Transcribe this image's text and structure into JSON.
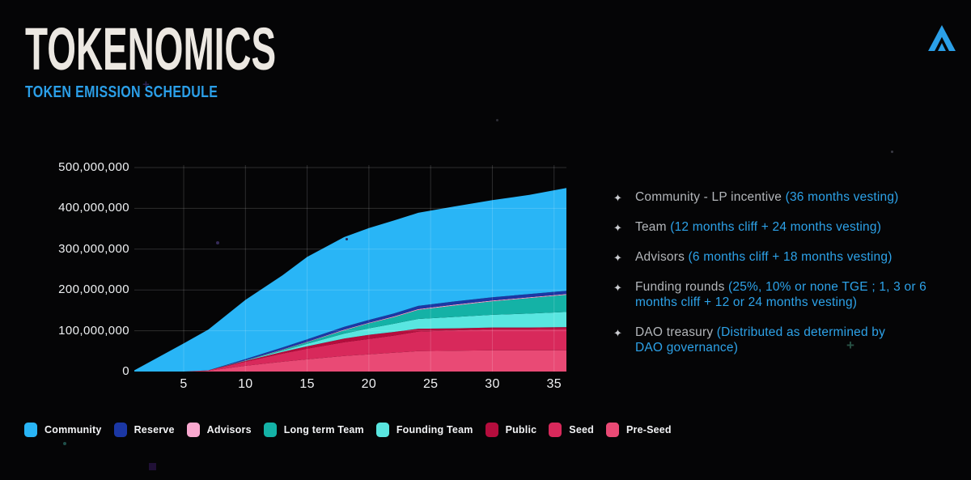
{
  "header": {
    "title": "TOKENOMICS",
    "subtitle": "TOKEN EMISSION SCHEDULE"
  },
  "colors": {
    "background": "#050506",
    "accent_blue": "#2ba0e8",
    "title_text": "#ece8e2",
    "bullet_text": "#b3b6ba",
    "axis_text": "#eef0f2",
    "gridline": "rgba(255,255,255,0.16)"
  },
  "bullet_icon": "✦",
  "bullets": [
    {
      "label": "Community - LP incentive ",
      "detail": "(36 months vesting)"
    },
    {
      "label": "Team ",
      "detail": "(12 months cliff + 24 months vesting)"
    },
    {
      "label": "Advisors ",
      "detail": "(6 months cliff + 18 months vesting)"
    },
    {
      "label": "Funding rounds ",
      "detail": "(25%, 10% or none TGE ; 1, 3 or 6\nmonths cliff + 12 or 24 months vesting)"
    },
    {
      "label": "DAO treasury ",
      "detail": "(Distributed as determined by\nDAO governance)"
    }
  ],
  "legend": [
    {
      "name": "Community",
      "color": "#29b5f6"
    },
    {
      "name": "Reserve",
      "color": "#1b37a4"
    },
    {
      "name": "Advisors",
      "color": "#f9a8cf"
    },
    {
      "name": "Long term Team",
      "color": "#14b2a6"
    },
    {
      "name": "Founding Team",
      "color": "#59e6e0"
    },
    {
      "name": "Public",
      "color": "#b50d3d"
    },
    {
      "name": "Seed",
      "color": "#d8295b"
    },
    {
      "name": "Pre-Seed",
      "color": "#e94a75"
    }
  ],
  "chart_data": {
    "type": "area",
    "stacked": true,
    "title": "Token emission schedule",
    "xlabel": "",
    "ylabel": "",
    "x": [
      1,
      5,
      7,
      10,
      13,
      15,
      18,
      20,
      22,
      24,
      27,
      30,
      33,
      36
    ],
    "y_unit_multiplier": 1000000,
    "ylim_millions": [
      0,
      500
    ],
    "xlim": [
      1,
      36
    ],
    "grid": true,
    "legend_position": "bottom",
    "series": [
      {
        "name": "Pre-Seed",
        "color": "#e94a75",
        "values_millions": [
          0,
          0,
          2,
          14,
          24,
          30,
          38,
          42,
          46,
          50,
          51,
          52,
          52,
          52
        ]
      },
      {
        "name": "Seed",
        "color": "#d8295b",
        "values_millions": [
          0,
          0,
          1,
          10,
          20,
          26,
          34,
          38,
          42,
          48,
          50,
          52,
          52,
          53
        ]
      },
      {
        "name": "Public",
        "color": "#b50d3d",
        "values_millions": [
          0,
          0,
          0,
          2,
          4,
          6,
          9,
          10,
          9,
          7,
          5,
          4,
          4,
          4
        ]
      },
      {
        "name": "Founding Team",
        "color": "#59e6e0",
        "values_millions": [
          0,
          0,
          0,
          1,
          3,
          6,
          12,
          16,
          20,
          24,
          28,
          31,
          34,
          37
        ]
      },
      {
        "name": "Long term Team",
        "color": "#14b2a6",
        "values_millions": [
          0,
          0,
          0,
          0,
          2,
          4,
          8,
          12,
          16,
          22,
          28,
          33,
          38,
          42
        ]
      },
      {
        "name": "Advisors",
        "color": "#f9a8cf",
        "values_millions": [
          0,
          0,
          0,
          0.5,
          1,
          1,
          1.5,
          1.5,
          2,
          2,
          2,
          2,
          2,
          2
        ]
      },
      {
        "name": "Reserve",
        "color": "#1b37a4",
        "values_millions": [
          0,
          0,
          0,
          3,
          5,
          6,
          7,
          7,
          7,
          8,
          8,
          8,
          8,
          8
        ]
      },
      {
        "name": "Community",
        "color": "#29b5f6",
        "values_millions": [
          3,
          69,
          100,
          145,
          177,
          202,
          220,
          225,
          228,
          228,
          233,
          238,
          243,
          252
        ]
      }
    ],
    "yticks": [
      {
        "v": 0,
        "label": "0"
      },
      {
        "v": 100,
        "label": "100,000,000"
      },
      {
        "v": 200,
        "label": "200,000,000"
      },
      {
        "v": 300,
        "label": "300,000,000"
      },
      {
        "v": 400,
        "label": "400,000,000"
      },
      {
        "v": 500,
        "label": "500,000,000"
      }
    ],
    "xticks": [
      5,
      10,
      15,
      20,
      25,
      30,
      35
    ]
  }
}
